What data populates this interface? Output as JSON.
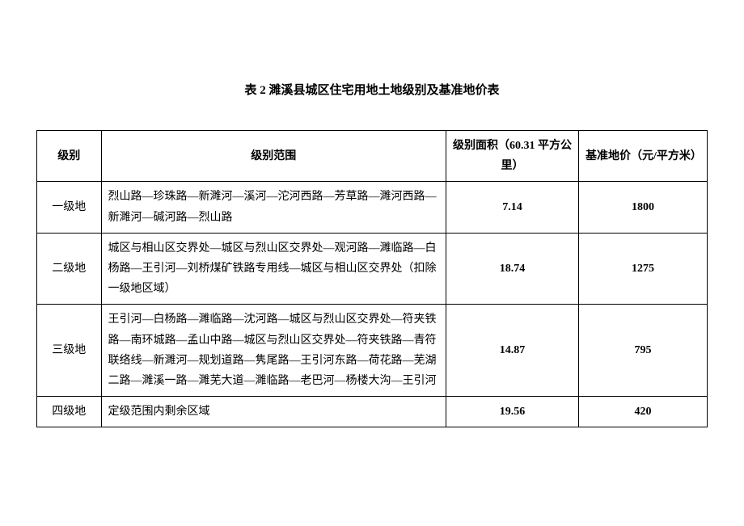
{
  "title": "表 2 濉溪县城区住宅用地土地级别及基准地价表",
  "columns": {
    "level": "级别",
    "range": "级别范围",
    "area": "级别面积（60.31 平方公里）",
    "price": "基准地价（元/平方米）"
  },
  "rows": [
    {
      "level": "一级地",
      "range": "烈山路—珍珠路—新濉河—溪河—沱河西路—芳草路—濉河西路—新濉河—碱河路—烈山路",
      "area": "7.14",
      "price": "1800"
    },
    {
      "level": "二级地",
      "range": "城区与相山区交界处—城区与烈山区交界处—观河路—濉临路—白杨路—王引河—刘桥煤矿铁路专用线—城区与相山区交界处（扣除一级地区域）",
      "area": "18.74",
      "price": "1275"
    },
    {
      "level": "三级地",
      "range": "王引河—白杨路—濉临路—沈河路—城区与烈山区交界处—符夹铁路—南环城路—孟山中路—城区与烈山区交界处—符夹铁路—青符联络线—新濉河—规划道路—隽尾路—王引河东路—荷花路—芜湖二路—濉溪一路—濉芜大道—濉临路—老巴河—杨楼大沟—王引河",
      "area": "14.87",
      "price": "795"
    },
    {
      "level": "四级地",
      "range": "定级范围内剩余区域",
      "area": "19.56",
      "price": "420"
    }
  ]
}
